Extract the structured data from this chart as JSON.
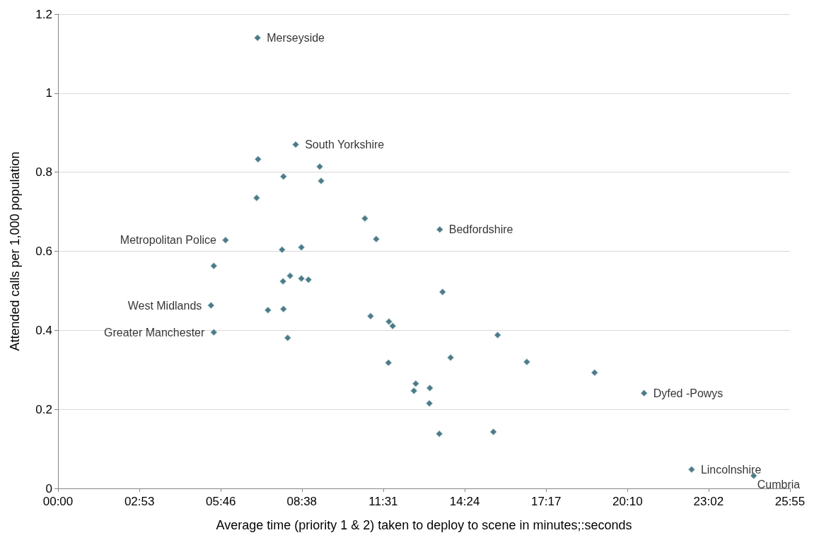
{
  "chart_data": {
    "type": "scatter",
    "xlabel": "Average time (priority 1 & 2) taken to deploy to scene in minutes;:seconds",
    "ylabel": "Attended calls per 1,000 population",
    "x": [
      424,
      505,
      425,
      556,
      479,
      559,
      422,
      652,
      676,
      811,
      356,
      476,
      517,
      331,
      493,
      478,
      517,
      532,
      817,
      325,
      446,
      479,
      664,
      703,
      711,
      331,
      488,
      934,
      834,
      702,
      996,
      1140,
      760,
      790,
      756,
      789,
      1245,
      810,
      925,
      1346,
      1478
    ],
    "values": [
      1.14,
      0.87,
      0.833,
      0.814,
      0.789,
      0.778,
      0.735,
      0.683,
      0.631,
      0.655,
      0.628,
      0.604,
      0.61,
      0.563,
      0.538,
      0.524,
      0.531,
      0.528,
      0.497,
      0.463,
      0.451,
      0.454,
      0.436,
      0.422,
      0.411,
      0.395,
      0.381,
      0.388,
      0.331,
      0.318,
      0.32,
      0.293,
      0.265,
      0.254,
      0.247,
      0.215,
      0.241,
      0.138,
      0.143,
      0.048,
      0.032
    ],
    "color": "#215968",
    "marker": "diamond",
    "grid": "y",
    "xlim": [
      0,
      1555
    ],
    "xticks": [
      {
        "value": 0,
        "label": "00:00"
      },
      {
        "value": 173,
        "label": "02:53"
      },
      {
        "value": 346,
        "label": "05:46"
      },
      {
        "value": 518,
        "label": "08:38"
      },
      {
        "value": 691,
        "label": "11:31"
      },
      {
        "value": 864,
        "label": "14:24"
      },
      {
        "value": 1037,
        "label": "17:17"
      },
      {
        "value": 1210,
        "label": "20:10"
      },
      {
        "value": 1382,
        "label": "23:02"
      },
      {
        "value": 1555,
        "label": "25:55"
      }
    ],
    "ylim": [
      0,
      1.2
    ],
    "yticks": [
      0,
      0.2,
      0.4,
      0.6,
      0.8,
      1,
      1.2
    ],
    "annotations": [
      {
        "text": "Merseyside",
        "x": 424,
        "y": 1.14
      },
      {
        "text": "South Yorkshire",
        "x": 505,
        "y": 0.87
      },
      {
        "text": "Bedfordshire",
        "x": 811,
        "y": 0.655
      },
      {
        "text": "Metropolitan Police",
        "x": 356,
        "y": 0.628
      },
      {
        "text": "West Midlands",
        "x": 325,
        "y": 0.463
      },
      {
        "text": "Greater Manchester",
        "x": 331,
        "y": 0.395
      },
      {
        "text": "Dyfed -Powys",
        "x": 1245,
        "y": 0.241
      },
      {
        "text": "Lincolnshire",
        "x": 1346,
        "y": 0.048
      },
      {
        "text": "Cumbria",
        "x": 1478,
        "y": 0.032
      }
    ]
  }
}
